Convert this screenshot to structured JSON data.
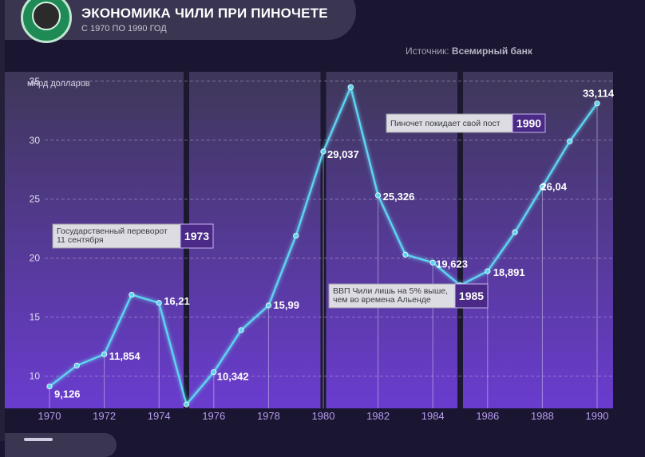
{
  "header": {
    "title": "ЭКОНОМИКА ЧИЛИ ПРИ ПИНОЧЕТЕ",
    "subtitle": "С 1970 ПО 1990 ГОД"
  },
  "source": {
    "label": "Источник:",
    "value": "Всемирный банк"
  },
  "colors": {
    "line": "#5fd3f0",
    "accent_badge": "#4a2a86",
    "gradient_top": "#3e3758",
    "gradient_bottom": "#6a3ccf"
  },
  "chart_data": {
    "type": "line",
    "ylabel": "млрд долларов",
    "xlabel": "",
    "ylim": [
      7,
      36
    ],
    "xlim": [
      1970,
      1990
    ],
    "x_ticks": [
      "1970",
      "1972",
      "1974",
      "1976",
      "1978",
      "1980",
      "1982",
      "1984",
      "1986",
      "1988",
      "1990"
    ],
    "y_ticks": [
      "10",
      "15",
      "20",
      "25",
      "30",
      "35"
    ],
    "grid": true,
    "series": [
      {
        "x": [
          1970,
          1971,
          1972,
          1973,
          1974,
          1975,
          1976,
          1977,
          1978,
          1979,
          1980,
          1981,
          1982,
          1983,
          1984,
          1985,
          1986,
          1987,
          1988,
          1989,
          1990
        ],
        "values": [
          9.126,
          10.9,
          11.854,
          16.9,
          16.21,
          7.6,
          10.342,
          13.9,
          15.99,
          21.9,
          29.037,
          34.5,
          25.326,
          20.3,
          19.623,
          17.7,
          18.891,
          22.2,
          26.04,
          29.9,
          33.114
        ]
      }
    ],
    "data_labels": [
      {
        "year": 1970,
        "text": "9,126"
      },
      {
        "year": 1972,
        "text": "11,854"
      },
      {
        "year": 1974,
        "text": "16,21"
      },
      {
        "year": 1976,
        "text": "10,342"
      },
      {
        "year": 1978,
        "text": "15,99"
      },
      {
        "year": 1980,
        "text": "29,037"
      },
      {
        "year": 1982,
        "text": "25,326"
      },
      {
        "year": 1984,
        "text": "19,623"
      },
      {
        "year": 1986,
        "text": "18,891"
      },
      {
        "year": 1988,
        "text": "26,04"
      },
      {
        "year": 1990,
        "text": "33,114"
      }
    ],
    "event_markers": [
      1975,
      1980,
      1985
    ],
    "annotations": [
      {
        "text": "Государственный переворот 11 сентября",
        "year": "1973"
      },
      {
        "text": "ВВП Чили лишь на 5% выше, чем во времена Альенде",
        "year": "1985"
      },
      {
        "text": "Пиночет покидает свой пост",
        "year": "1990"
      }
    ]
  }
}
